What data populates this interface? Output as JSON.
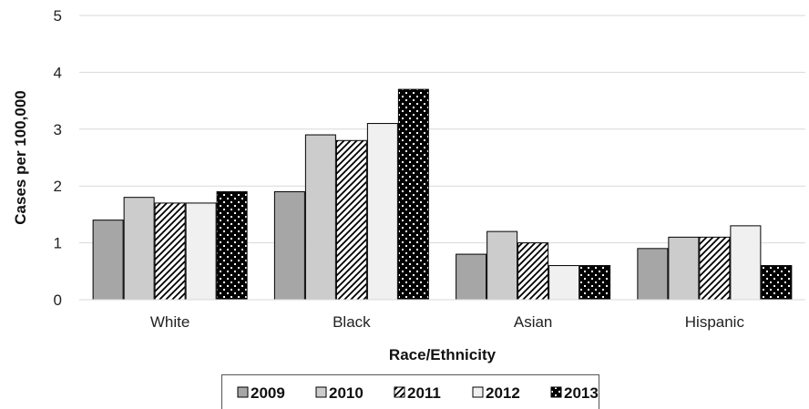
{
  "chart_data": {
    "type": "bar",
    "title": "",
    "xlabel": "Race/Ethnicity",
    "ylabel": "Cases per 100,000",
    "ylim": [
      0,
      5
    ],
    "yticks": [
      "0",
      "1",
      "2",
      "3",
      "4",
      "5"
    ],
    "categories": [
      "White",
      "Black",
      "Asian",
      "Hispanic"
    ],
    "grid": true,
    "legend_position": "bottom",
    "series": [
      {
        "name": "2009",
        "values": [
          1.4,
          1.9,
          0.8,
          0.9
        ],
        "fill": "#a6a6a6",
        "pattern": "solid"
      },
      {
        "name": "2010",
        "values": [
          1.8,
          2.9,
          1.2,
          1.1
        ],
        "fill": "#cccccc",
        "pattern": "solid"
      },
      {
        "name": "2011",
        "values": [
          1.7,
          2.8,
          1.0,
          1.1
        ],
        "fill": "#ffffff",
        "pattern": "diagonal-stripes"
      },
      {
        "name": "2012",
        "values": [
          1.7,
          3.1,
          0.6,
          1.3
        ],
        "fill": "#f0f0f0",
        "pattern": "solid"
      },
      {
        "name": "2013",
        "values": [
          1.9,
          3.7,
          0.6,
          0.6
        ],
        "fill": "#000000",
        "pattern": "dots"
      }
    ]
  }
}
